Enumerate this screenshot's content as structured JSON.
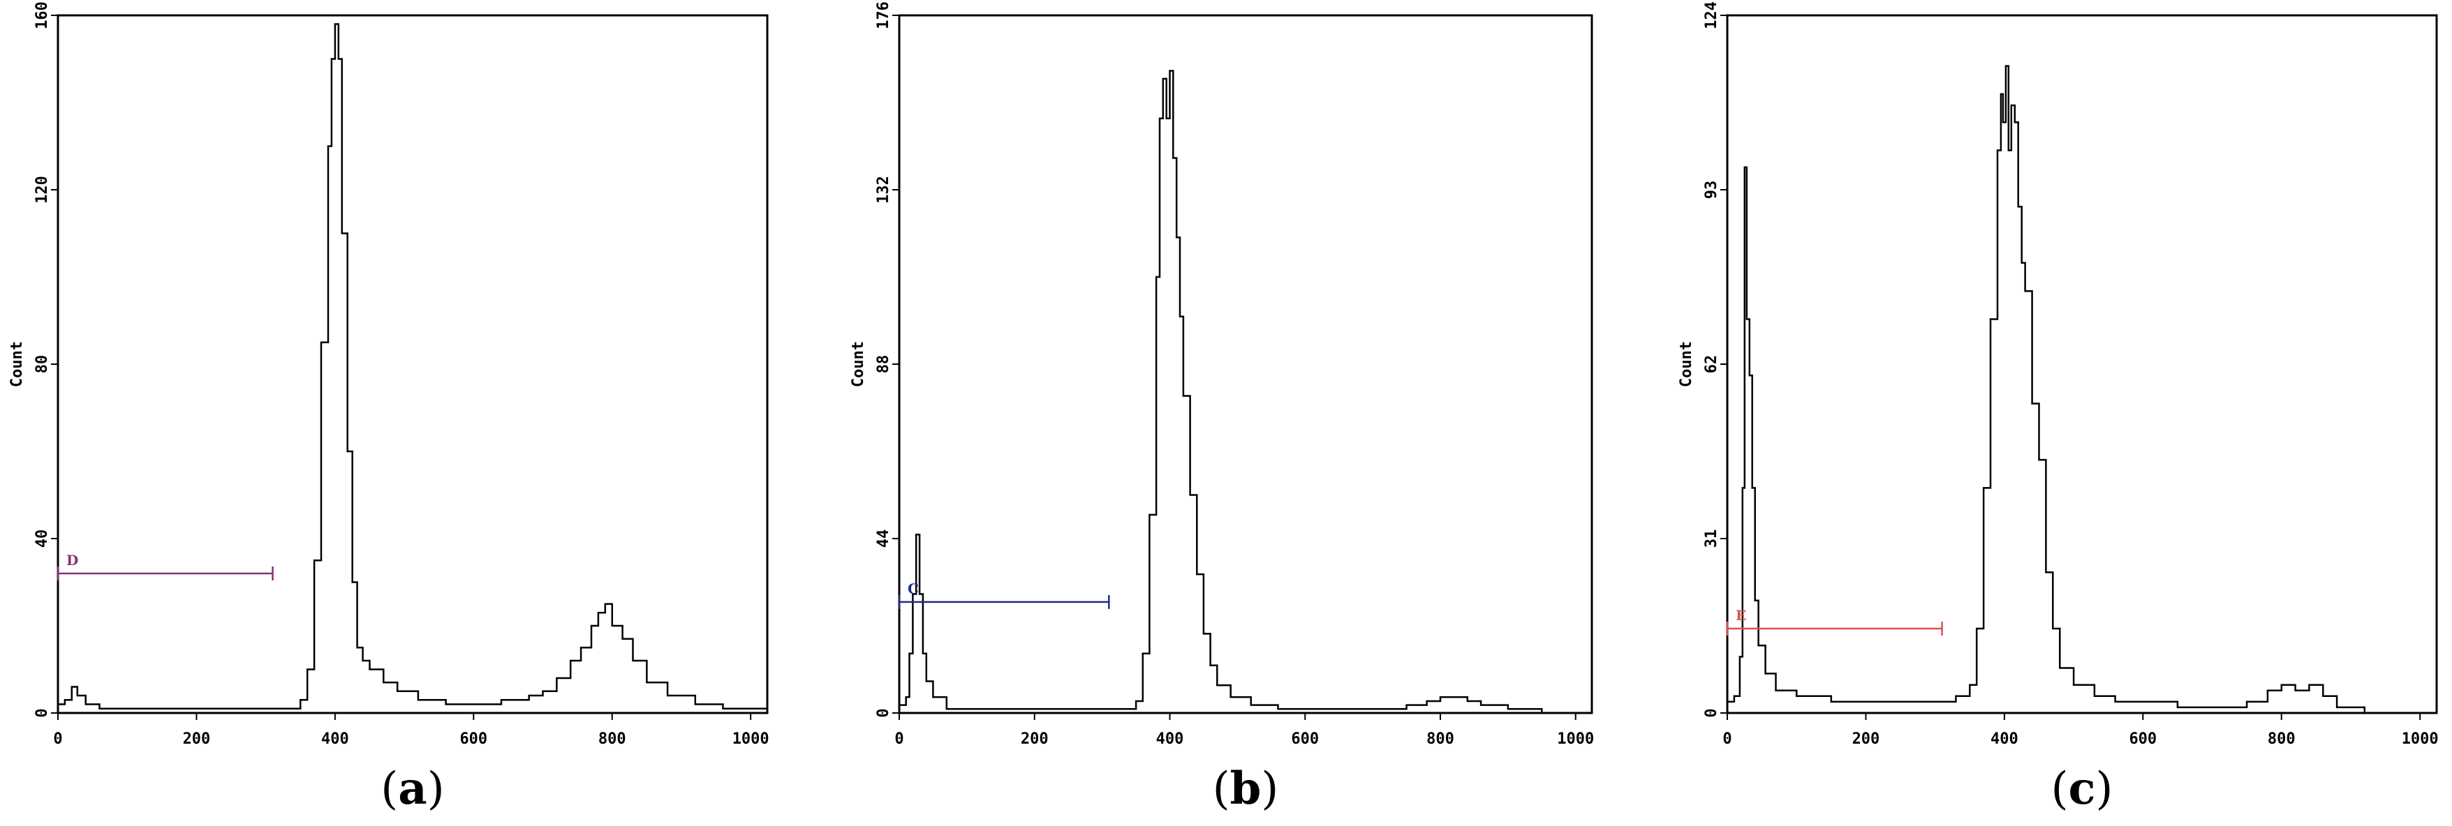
{
  "chart_data": [
    {
      "type": "line",
      "panel_label": "a",
      "ylabel": "Count",
      "xlim": [
        0,
        1024
      ],
      "ylim": [
        0,
        160
      ],
      "xticks": [
        0,
        200,
        400,
        600,
        800,
        1000
      ],
      "yticks": [
        0,
        40,
        80,
        120,
        160
      ],
      "gate": {
        "label": "D",
        "x_start": 0,
        "x_end": 310,
        "y": 32,
        "color": "#8b2f7a"
      },
      "series": [
        {
          "points": [
            [
              0,
              2
            ],
            [
              10,
              3
            ],
            [
              20,
              6
            ],
            [
              28,
              4
            ],
            [
              40,
              2
            ],
            [
              60,
              1
            ],
            [
              100,
              1
            ],
            [
              150,
              1
            ],
            [
              200,
              1
            ],
            [
              250,
              1
            ],
            [
              300,
              1
            ],
            [
              340,
              1
            ],
            [
              350,
              3
            ],
            [
              360,
              10
            ],
            [
              370,
              35
            ],
            [
              380,
              85
            ],
            [
              390,
              130
            ],
            [
              395,
              150
            ],
            [
              400,
              158
            ],
            [
              405,
              150
            ],
            [
              410,
              110
            ],
            [
              418,
              60
            ],
            [
              425,
              30
            ],
            [
              432,
              15
            ],
            [
              440,
              12
            ],
            [
              450,
              10
            ],
            [
              470,
              7
            ],
            [
              490,
              5
            ],
            [
              520,
              3
            ],
            [
              560,
              2
            ],
            [
              600,
              2
            ],
            [
              640,
              3
            ],
            [
              680,
              4
            ],
            [
              700,
              5
            ],
            [
              720,
              8
            ],
            [
              740,
              12
            ],
            [
              755,
              15
            ],
            [
              770,
              20
            ],
            [
              780,
              23
            ],
            [
              790,
              25
            ],
            [
              800,
              20
            ],
            [
              815,
              17
            ],
            [
              830,
              12
            ],
            [
              850,
              7
            ],
            [
              880,
              4
            ],
            [
              920,
              2
            ],
            [
              960,
              1
            ],
            [
              1000,
              1
            ],
            [
              1024,
              0
            ]
          ]
        }
      ]
    },
    {
      "type": "line",
      "panel_label": "b",
      "ylabel": "Count",
      "xlim": [
        0,
        1024
      ],
      "ylim": [
        0,
        176
      ],
      "xticks": [
        0,
        200,
        400,
        600,
        800,
        1000
      ],
      "yticks": [
        0,
        44,
        88,
        132,
        176
      ],
      "gate": {
        "label": "C",
        "x_start": 0,
        "x_end": 310,
        "y": 28,
        "color": "#1f2a8a"
      },
      "series": [
        {
          "points": [
            [
              0,
              2
            ],
            [
              10,
              4
            ],
            [
              15,
              15
            ],
            [
              20,
              30
            ],
            [
              25,
              45
            ],
            [
              30,
              30
            ],
            [
              35,
              15
            ],
            [
              40,
              8
            ],
            [
              50,
              4
            ],
            [
              70,
              1
            ],
            [
              100,
              1
            ],
            [
              200,
              1
            ],
            [
              300,
              1
            ],
            [
              330,
              1
            ],
            [
              350,
              3
            ],
            [
              360,
              15
            ],
            [
              370,
              50
            ],
            [
              380,
              110
            ],
            [
              385,
              150
            ],
            [
              390,
              160
            ],
            [
              395,
              150
            ],
            [
              400,
              162
            ],
            [
              405,
              140
            ],
            [
              410,
              120
            ],
            [
              415,
              100
            ],
            [
              420,
              80
            ],
            [
              430,
              55
            ],
            [
              440,
              35
            ],
            [
              450,
              20
            ],
            [
              460,
              12
            ],
            [
              470,
              7
            ],
            [
              490,
              4
            ],
            [
              520,
              2
            ],
            [
              560,
              1
            ],
            [
              600,
              1
            ],
            [
              650,
              1
            ],
            [
              700,
              1
            ],
            [
              750,
              2
            ],
            [
              780,
              3
            ],
            [
              800,
              4
            ],
            [
              820,
              4
            ],
            [
              840,
              3
            ],
            [
              860,
              2
            ],
            [
              900,
              1
            ],
            [
              950,
              0
            ],
            [
              1024,
              0
            ]
          ]
        }
      ]
    },
    {
      "type": "line",
      "panel_label": "c",
      "ylabel": "Count",
      "xlim": [
        0,
        1024
      ],
      "ylim": [
        0,
        124
      ],
      "xticks": [
        0,
        200,
        400,
        600,
        800,
        1000
      ],
      "yticks": [
        0,
        31,
        62,
        93,
        124
      ],
      "gate": {
        "label": "E",
        "x_start": 0,
        "x_end": 310,
        "y": 15,
        "color": "#d9534f"
      },
      "series": [
        {
          "points": [
            [
              0,
              2
            ],
            [
              10,
              3
            ],
            [
              18,
              10
            ],
            [
              22,
              40
            ],
            [
              25,
              97
            ],
            [
              28,
              70
            ],
            [
              32,
              60
            ],
            [
              36,
              40
            ],
            [
              40,
              20
            ],
            [
              45,
              12
            ],
            [
              55,
              7
            ],
            [
              70,
              4
            ],
            [
              100,
              3
            ],
            [
              150,
              2
            ],
            [
              200,
              2
            ],
            [
              250,
              2
            ],
            [
              300,
              2
            ],
            [
              330,
              3
            ],
            [
              350,
              5
            ],
            [
              360,
              15
            ],
            [
              370,
              40
            ],
            [
              380,
              70
            ],
            [
              390,
              100
            ],
            [
              395,
              110
            ],
            [
              398,
              105
            ],
            [
              402,
              115
            ],
            [
              406,
              100
            ],
            [
              410,
              108
            ],
            [
              415,
              105
            ],
            [
              420,
              90
            ],
            [
              425,
              80
            ],
            [
              430,
              75
            ],
            [
              440,
              55
            ],
            [
              450,
              45
            ],
            [
              460,
              25
            ],
            [
              470,
              15
            ],
            [
              480,
              8
            ],
            [
              500,
              5
            ],
            [
              530,
              3
            ],
            [
              560,
              2
            ],
            [
              600,
              2
            ],
            [
              650,
              1
            ],
            [
              700,
              1
            ],
            [
              750,
              2
            ],
            [
              780,
              4
            ],
            [
              800,
              5
            ],
            [
              820,
              4
            ],
            [
              840,
              5
            ],
            [
              860,
              3
            ],
            [
              880,
              1
            ],
            [
              920,
              0
            ],
            [
              1024,
              0
            ]
          ]
        }
      ]
    }
  ],
  "panels": [
    {
      "label_open": "(",
      "label": "a",
      "label_close": ")"
    },
    {
      "label_open": "(",
      "label": "b",
      "label_close": ")"
    },
    {
      "label_open": "(",
      "label": "c",
      "label_close": ")"
    }
  ]
}
